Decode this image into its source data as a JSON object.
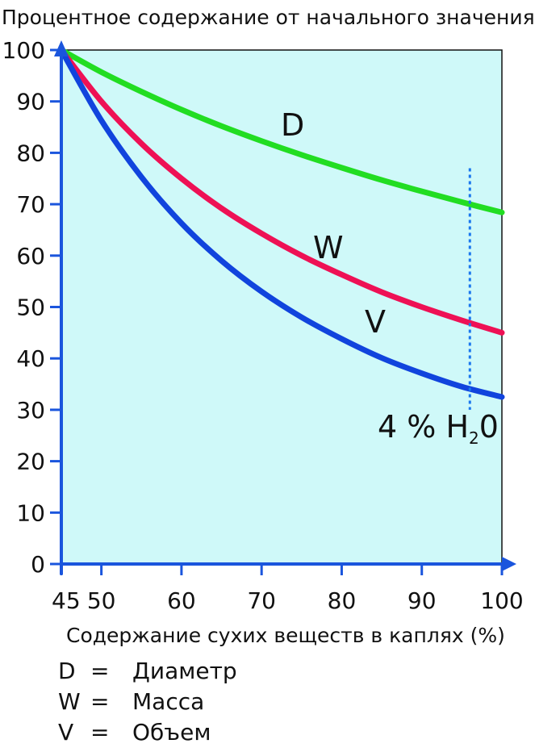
{
  "chart_data": {
    "type": "line",
    "title": "Процентное содержание от начального значения",
    "xlabel": "Содержание сухих веществ в каплях (%)",
    "ylabel": "",
    "xlim": [
      45,
      100
    ],
    "ylim": [
      0,
      100
    ],
    "x_ticks": [
      45,
      50,
      60,
      70,
      80,
      90,
      100
    ],
    "y_ticks": [
      0,
      10,
      20,
      30,
      40,
      50,
      60,
      70,
      80,
      90,
      100
    ],
    "series": [
      {
        "name": "D",
        "color": "#22dd22",
        "x": [
          45,
          50,
          55,
          60,
          65,
          70,
          75,
          80,
          85,
          90,
          95,
          100
        ],
        "y": [
          100,
          95.7,
          91.9,
          88.4,
          85.2,
          82.3,
          79.6,
          77.1,
          74.7,
          72.5,
          70.4,
          68.4
        ]
      },
      {
        "name": "W",
        "color": "#ee1155",
        "x": [
          45,
          50,
          55,
          60,
          65,
          70,
          75,
          80,
          85,
          90,
          95,
          100
        ],
        "y": [
          100,
          90.0,
          81.8,
          75.0,
          69.2,
          64.3,
          60.0,
          56.3,
          52.9,
          50.0,
          47.4,
          45.0
        ]
      },
      {
        "name": "V",
        "color": "#1144dd",
        "x": [
          45,
          50,
          55,
          60,
          65,
          70,
          75,
          80,
          85,
          90,
          95,
          100
        ],
        "y": [
          100,
          86.3,
          75.3,
          66.3,
          59.0,
          53.0,
          48.0,
          43.8,
          40.1,
          37.1,
          34.5,
          32.5
        ]
      }
    ],
    "annotations": {
      "marker_x": 96,
      "marker_y_range": [
        30,
        77
      ],
      "marker_label_pre": "4 % H",
      "marker_label_sub": "2",
      "marker_label_post": "0",
      "label_D": "D",
      "label_W": "W",
      "label_V": "V"
    }
  },
  "legend": [
    {
      "key": "D",
      "eq": "=",
      "name": "Диаметр"
    },
    {
      "key": "W",
      "eq": "=",
      "name": "Масса"
    },
    {
      "key": "V",
      "eq": "=",
      "name": "Объем"
    }
  ],
  "colors": {
    "plot_bg": "#cff9f9",
    "axis": "#1a55dd",
    "marker": "#1a77ee"
  }
}
